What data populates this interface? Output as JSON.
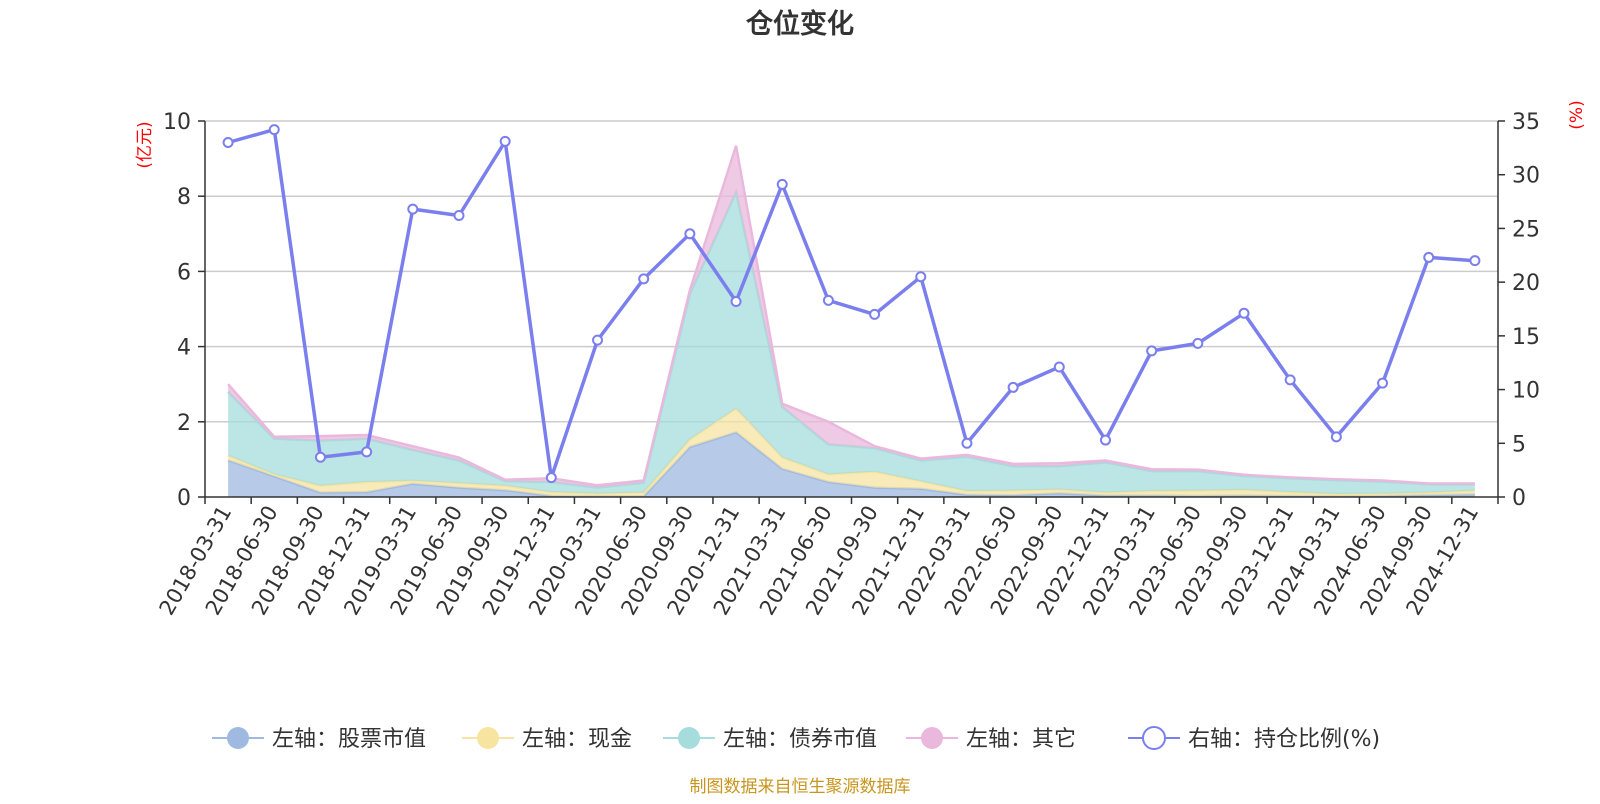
{
  "chart_data": {
    "type": "area",
    "title": "仓位变化",
    "left_axis_label": "(亿元)",
    "right_axis_label": "(%)",
    "ylim_left": [
      0,
      10
    ],
    "ylim_right": [
      0,
      35
    ],
    "yticks_left": [
      0,
      2,
      4,
      6,
      8,
      10
    ],
    "yticks_right": [
      0,
      5,
      10,
      15,
      20,
      25,
      30,
      35
    ],
    "categories": [
      "2018-03-31",
      "2018-06-30",
      "2018-09-30",
      "2018-12-31",
      "2019-03-31",
      "2019-06-30",
      "2019-09-30",
      "2019-12-31",
      "2020-03-31",
      "2020-06-30",
      "2020-09-30",
      "2020-12-31",
      "2021-03-31",
      "2021-06-30",
      "2021-09-30",
      "2021-12-31",
      "2022-03-31",
      "2022-06-30",
      "2022-09-30",
      "2022-12-31",
      "2023-03-31",
      "2023-06-30",
      "2023-09-30",
      "2023-12-31",
      "2024-03-31",
      "2024-06-30",
      "2024-09-30",
      "2024-12-31"
    ],
    "stacked_series": [
      {
        "name": "左轴：股票市值",
        "color": "#9fb9e0",
        "values": [
          0.98,
          0.55,
          0.12,
          0.13,
          0.35,
          0.25,
          0.18,
          0.03,
          0.02,
          0.02,
          1.33,
          1.72,
          0.75,
          0.4,
          0.25,
          0.22,
          0.06,
          0.05,
          0.1,
          0.04,
          0.04,
          0.03,
          0.04,
          0.03,
          0.02,
          0.03,
          0.05,
          0.07
        ]
      },
      {
        "name": "左轴：现金",
        "color": "#f7e4a1",
        "values": [
          0.12,
          0.05,
          0.18,
          0.27,
          0.08,
          0.12,
          0.12,
          0.1,
          0.07,
          0.1,
          0.2,
          0.63,
          0.3,
          0.2,
          0.42,
          0.2,
          0.1,
          0.12,
          0.1,
          0.08,
          0.12,
          0.14,
          0.15,
          0.1,
          0.06,
          0.06,
          0.07,
          0.1
        ]
      },
      {
        "name": "左轴：债券市值",
        "color": "#a6dcdc",
        "values": [
          1.7,
          0.95,
          1.2,
          1.15,
          0.82,
          0.6,
          0.12,
          0.27,
          0.16,
          0.26,
          3.87,
          5.76,
          1.35,
          0.8,
          0.63,
          0.55,
          0.91,
          0.65,
          0.62,
          0.8,
          0.53,
          0.52,
          0.37,
          0.37,
          0.37,
          0.32,
          0.22,
          0.17
        ]
      },
      {
        "name": "左轴：其它",
        "color": "#eab8dc",
        "values": [
          0.2,
          0.05,
          0.12,
          0.1,
          0.1,
          0.08,
          0.04,
          0.1,
          0.06,
          0.06,
          0.1,
          1.23,
          0.08,
          0.6,
          0.05,
          0.05,
          0.05,
          0.06,
          0.08,
          0.05,
          0.05,
          0.04,
          0.03,
          0.02,
          0.02,
          0.03,
          0.02,
          0.02
        ]
      }
    ],
    "line_series": {
      "name": "右轴：持仓比例(%)",
      "color": "#7b7fee",
      "values": [
        33.0,
        34.2,
        3.7,
        4.2,
        26.8,
        26.2,
        33.1,
        1.8,
        14.6,
        20.3,
        24.5,
        18.2,
        29.1,
        18.3,
        17.0,
        20.5,
        5.0,
        10.2,
        12.1,
        5.3,
        13.6,
        14.3,
        17.1,
        10.9,
        5.6,
        10.6,
        22.3,
        22.0
      ]
    },
    "legend_position": "bottom",
    "grid": true,
    "footer": "制图数据来自恒生聚源数据库"
  }
}
